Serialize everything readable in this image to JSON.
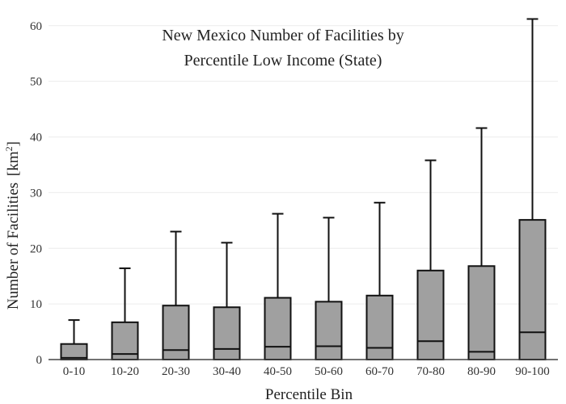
{
  "chart_data": {
    "type": "box",
    "title_lines": [
      "New Mexico Number of Facilities by",
      "Percentile Low Income (State)"
    ],
    "xlabel": "Percentile Bin",
    "ylabel": "Number of Facilities",
    "ylabel_unit_base": "[km",
    "ylabel_unit_sup": "2",
    "ylabel_unit_end": "]",
    "ylim": [
      0,
      62
    ],
    "yticks": [
      0,
      10,
      20,
      30,
      40,
      50,
      60
    ],
    "grid": true,
    "categories": [
      "0-10",
      "10-20",
      "20-30",
      "30-40",
      "40-50",
      "50-60",
      "60-70",
      "70-80",
      "80-90",
      "90-100"
    ],
    "boxes": [
      {
        "whisker_low": 0,
        "q1": 0,
        "median": 0.3,
        "q3": 2.8,
        "whisker_high": 7.1
      },
      {
        "whisker_low": 0,
        "q1": 0,
        "median": 1.0,
        "q3": 6.7,
        "whisker_high": 16.4
      },
      {
        "whisker_low": 0,
        "q1": 0,
        "median": 1.7,
        "q3": 9.7,
        "whisker_high": 23.0
      },
      {
        "whisker_low": 0,
        "q1": 0,
        "median": 1.9,
        "q3": 9.4,
        "whisker_high": 21.0
      },
      {
        "whisker_low": 0,
        "q1": 0,
        "median": 2.3,
        "q3": 11.1,
        "whisker_high": 26.2
      },
      {
        "whisker_low": 0,
        "q1": 0,
        "median": 2.4,
        "q3": 10.4,
        "whisker_high": 25.5
      },
      {
        "whisker_low": 0,
        "q1": 0,
        "median": 2.1,
        "q3": 11.5,
        "whisker_high": 28.2
      },
      {
        "whisker_low": 0,
        "q1": 0,
        "median": 3.3,
        "q3": 16.0,
        "whisker_high": 35.8
      },
      {
        "whisker_low": 0,
        "q1": 0,
        "median": 1.4,
        "q3": 16.8,
        "whisker_high": 41.6
      },
      {
        "whisker_low": 0,
        "q1": 0,
        "median": 4.9,
        "q3": 25.1,
        "whisker_high": 61.2
      }
    ],
    "colors": {
      "box_fill": "#a0a0a0",
      "box_stroke": "#111111",
      "axis": "#444444"
    }
  }
}
